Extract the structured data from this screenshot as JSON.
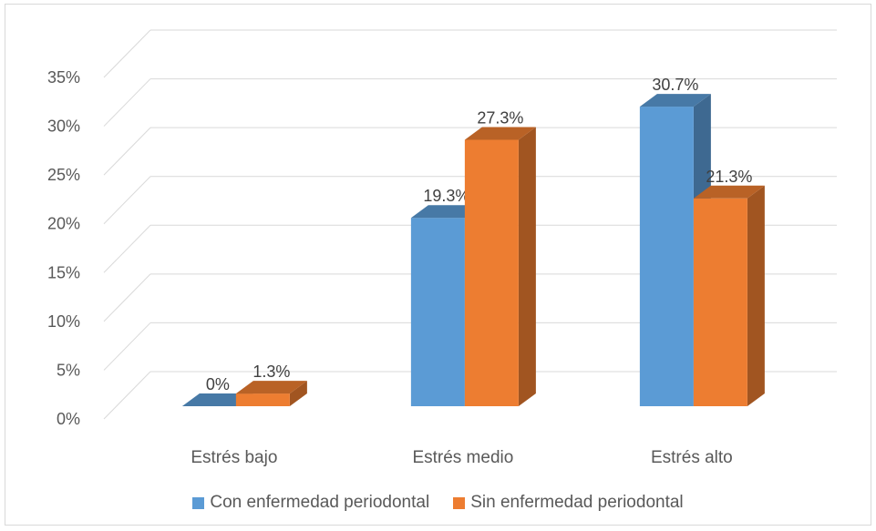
{
  "chart_data": {
    "type": "bar",
    "title": "",
    "xlabel": "",
    "ylabel": "",
    "categories": [
      "Estrés bajo",
      "Estrés medio",
      "Estrés alto"
    ],
    "series": [
      {
        "name": "Con enfermedad periodontal",
        "values": [
          0,
          19.3,
          30.7
        ],
        "labels": [
          "0%",
          "19.3%",
          "30.7%"
        ],
        "color": "#5B9BD5"
      },
      {
        "name": "Sin enfermedad periodontal",
        "values": [
          1.3,
          27.3,
          21.3
        ],
        "labels": [
          "1.3%",
          "27.3%",
          "21.3%"
        ],
        "color": "#ED7D31"
      }
    ],
    "ylim": [
      0,
      35
    ],
    "yticks": [
      0,
      5,
      10,
      15,
      20,
      25,
      30,
      35
    ],
    "ytick_labels": [
      "0%",
      "5%",
      "10%",
      "15%",
      "20%",
      "25%",
      "30%",
      "35%"
    ],
    "grid": true,
    "style": "3d-clustered-column",
    "legend_position": "bottom"
  }
}
